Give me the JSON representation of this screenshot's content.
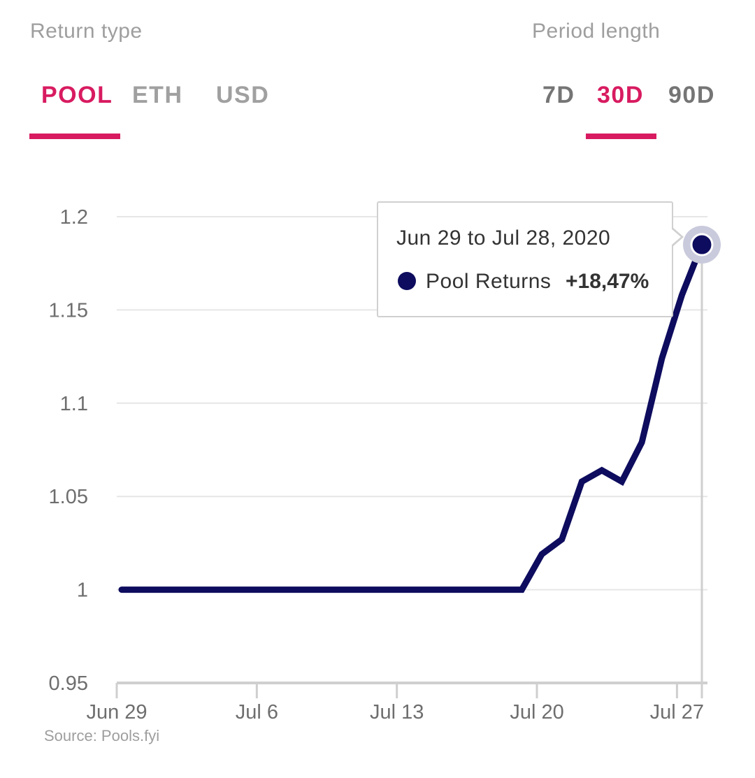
{
  "controls": {
    "return_type_label": "Return type",
    "period_label": "Period length",
    "return_tabs": [
      {
        "label": "POOL",
        "active": true
      },
      {
        "label": "ETH",
        "active": false
      },
      {
        "label": "USD",
        "active": false
      }
    ],
    "period_tabs": [
      {
        "label": "7D",
        "active": false
      },
      {
        "label": "30D",
        "active": true
      },
      {
        "label": "90D",
        "active": false
      }
    ]
  },
  "tooltip": {
    "title": "Jun 29 to Jul 28, 2020",
    "series_name": "Pool Returns",
    "value": "+18,47%"
  },
  "source": "Source: Pools.fyi",
  "colors": {
    "accent": "#d81b60",
    "line": "#0d0c5e",
    "grid": "#e6e6e6",
    "tab_inactive": "#a0a0a0"
  },
  "chart_data": {
    "type": "line",
    "title": "",
    "xlabel": "",
    "ylabel": "",
    "ylim": [
      0.95,
      1.2
    ],
    "yticks": [
      "1.2",
      "1.15",
      "1.1",
      "1.05",
      "1",
      "0.95"
    ],
    "x_tick_labels": [
      "Jun 29",
      "Jul 6",
      "Jul 13",
      "Jul 20",
      "Jul 27"
    ],
    "grid": true,
    "series": [
      {
        "name": "Pool Returns",
        "x": [
          "Jun 29",
          "Jun 30",
          "Jul 1",
          "Jul 2",
          "Jul 3",
          "Jul 4",
          "Jul 5",
          "Jul 6",
          "Jul 7",
          "Jul 8",
          "Jul 9",
          "Jul 10",
          "Jul 11",
          "Jul 12",
          "Jul 13",
          "Jul 14",
          "Jul 15",
          "Jul 16",
          "Jul 17",
          "Jul 18",
          "Jul 19",
          "Jul 20",
          "Jul 21",
          "Jul 22",
          "Jul 23",
          "Jul 24",
          "Jul 25",
          "Jul 26",
          "Jul 27",
          "Jul 28"
        ],
        "values": [
          1,
          1,
          1,
          1,
          1,
          1,
          1,
          1,
          1,
          1,
          1,
          1,
          1,
          1,
          1,
          1,
          1,
          1,
          1,
          1,
          1,
          1.019,
          1.027,
          1.058,
          1.064,
          1.058,
          1.079,
          1.124,
          1.158,
          1.185
        ]
      }
    ]
  }
}
